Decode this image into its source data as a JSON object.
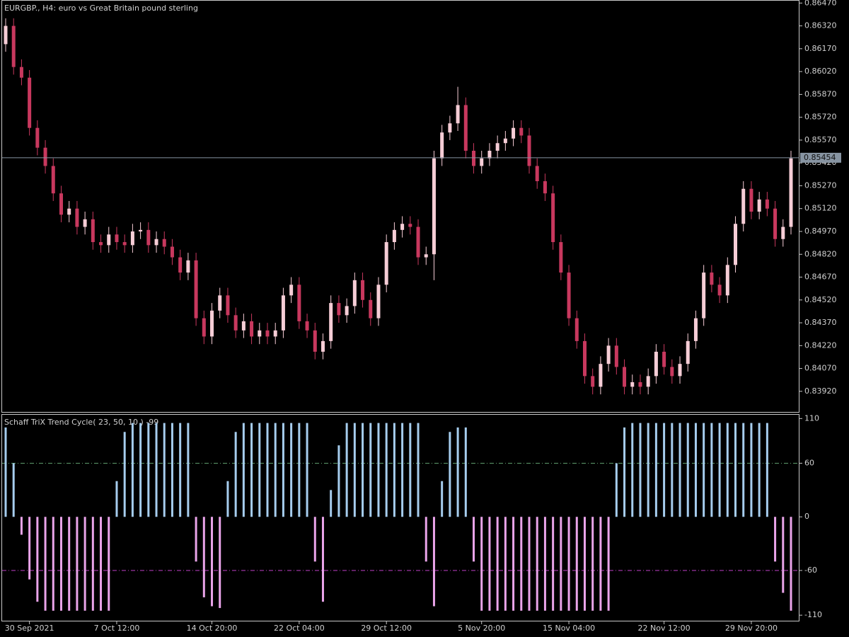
{
  "chart_data": [
    {
      "type": "candlestick",
      "title": "EURGBP., H4:  euro vs Great Britain pound sterling",
      "categories": [
        null,
        null,
        null,
        "30 Sep 2021",
        null,
        null,
        null,
        null,
        null,
        null,
        null,
        null,
        null,
        null,
        "7 Oct 12:00",
        null,
        null,
        null,
        null,
        null,
        null,
        null,
        null,
        null,
        null,
        null,
        "14 Oct 20:00",
        null,
        null,
        null,
        null,
        null,
        null,
        null,
        null,
        null,
        null,
        "22 Oct 04:00",
        null,
        null,
        null,
        null,
        null,
        null,
        null,
        null,
        null,
        null,
        "29 Oct 12:00",
        null,
        null,
        null,
        null,
        null,
        null,
        null,
        null,
        null,
        null,
        null,
        "5 Nov 20:00",
        null,
        null,
        null,
        null,
        null,
        null,
        null,
        null,
        null,
        null,
        "15 Nov 04:00",
        null,
        null,
        null,
        null,
        null,
        null,
        null,
        null,
        null,
        null,
        null,
        "22 Nov 12:00",
        null,
        null,
        null,
        null,
        null,
        null,
        null,
        null,
        null,
        null,
        "29 Nov 20:00",
        null,
        null,
        null,
        null,
        null
      ],
      "open": [
        0.862,
        0.8632,
        0.8605,
        0.8598,
        0.8565,
        0.8552,
        0.854,
        0.8522,
        0.8508,
        0.8512,
        0.85,
        0.8505,
        0.849,
        0.8488,
        0.8495,
        0.849,
        0.8488,
        0.8497,
        0.8498,
        0.8488,
        0.8492,
        0.8487,
        0.848,
        0.847,
        0.8478,
        0.844,
        0.8428,
        0.8445,
        0.8455,
        0.8442,
        0.8432,
        0.8438,
        0.8428,
        0.8432,
        0.8428,
        0.8432,
        0.8455,
        0.8462,
        0.8438,
        0.8432,
        0.8418,
        0.8425,
        0.845,
        0.8442,
        0.8448,
        0.8465,
        0.8452,
        0.844,
        0.8462,
        0.849,
        0.8498,
        0.8502,
        0.85,
        0.848,
        0.8482,
        0.8545,
        0.8562,
        0.8568,
        0.858,
        0.855,
        0.854,
        0.8545,
        0.855,
        0.8555,
        0.8558,
        0.8565,
        0.856,
        0.854,
        0.853,
        0.8522,
        0.849,
        0.847,
        0.844,
        0.8425,
        0.8402,
        0.8395,
        0.841,
        0.8422,
        0.8408,
        0.8395,
        0.8398,
        0.8395,
        0.8402,
        0.8418,
        0.8408,
        0.8402,
        0.841,
        0.8425,
        0.844,
        0.847,
        0.8462,
        0.8455,
        0.8475,
        0.8502,
        0.8525,
        0.851,
        0.8518,
        0.8512,
        0.8492,
        0.85
      ],
      "high": [
        0.8637,
        0.8637,
        0.861,
        0.8603,
        0.857,
        0.8557,
        0.8545,
        0.8527,
        0.8517,
        0.8517,
        0.851,
        0.851,
        0.8495,
        0.85,
        0.85,
        0.8495,
        0.8502,
        0.8503,
        0.8503,
        0.8497,
        0.8497,
        0.8492,
        0.8485,
        0.8483,
        0.8483,
        0.8445,
        0.845,
        0.846,
        0.846,
        0.8447,
        0.8443,
        0.8443,
        0.8437,
        0.8437,
        0.8437,
        0.846,
        0.8467,
        0.8467,
        0.8443,
        0.8437,
        0.843,
        0.8455,
        0.8455,
        0.8453,
        0.847,
        0.847,
        0.8457,
        0.8467,
        0.8495,
        0.8503,
        0.8507,
        0.8507,
        0.8505,
        0.8487,
        0.855,
        0.8567,
        0.8573,
        0.8592,
        0.8585,
        0.8555,
        0.855,
        0.8555,
        0.856,
        0.8563,
        0.857,
        0.857,
        0.8565,
        0.8545,
        0.8535,
        0.8527,
        0.8495,
        0.8475,
        0.8445,
        0.843,
        0.8407,
        0.8415,
        0.8427,
        0.8427,
        0.8413,
        0.8403,
        0.8403,
        0.8407,
        0.8423,
        0.8423,
        0.8413,
        0.8415,
        0.843,
        0.8445,
        0.8475,
        0.8475,
        0.8467,
        0.848,
        0.8507,
        0.853,
        0.853,
        0.8523,
        0.8523,
        0.8517,
        0.8505,
        0.855
      ],
      "low": [
        0.8615,
        0.86,
        0.8593,
        0.856,
        0.8547,
        0.8535,
        0.8517,
        0.8503,
        0.8503,
        0.8495,
        0.8495,
        0.8485,
        0.8483,
        0.8483,
        0.8485,
        0.8483,
        0.8483,
        0.8492,
        0.8483,
        0.8483,
        0.8482,
        0.8475,
        0.8465,
        0.8465,
        0.8435,
        0.8423,
        0.8423,
        0.844,
        0.8437,
        0.8427,
        0.8427,
        0.8423,
        0.8423,
        0.8423,
        0.8423,
        0.8427,
        0.845,
        0.8433,
        0.8427,
        0.8413,
        0.8413,
        0.842,
        0.8437,
        0.8437,
        0.8443,
        0.8447,
        0.8435,
        0.8435,
        0.8457,
        0.8485,
        0.8493,
        0.8495,
        0.8475,
        0.8475,
        0.8465,
        0.854,
        0.8557,
        0.8563,
        0.8545,
        0.8535,
        0.8535,
        0.854,
        0.8545,
        0.855,
        0.8553,
        0.8555,
        0.8535,
        0.8525,
        0.8517,
        0.8485,
        0.8465,
        0.8435,
        0.842,
        0.8397,
        0.839,
        0.839,
        0.8405,
        0.8403,
        0.839,
        0.839,
        0.839,
        0.839,
        0.8397,
        0.8403,
        0.8397,
        0.8397,
        0.8405,
        0.842,
        0.8435,
        0.8457,
        0.845,
        0.845,
        0.847,
        0.8497,
        0.8505,
        0.8505,
        0.8507,
        0.8487,
        0.8487,
        0.8495
      ],
      "close": [
        0.8632,
        0.8605,
        0.8598,
        0.8565,
        0.8552,
        0.854,
        0.8522,
        0.8508,
        0.8512,
        0.85,
        0.8505,
        0.849,
        0.8488,
        0.8495,
        0.849,
        0.8488,
        0.8497,
        0.8498,
        0.8488,
        0.8492,
        0.8487,
        0.848,
        0.847,
        0.8478,
        0.844,
        0.8428,
        0.8445,
        0.8455,
        0.8442,
        0.8432,
        0.8438,
        0.8428,
        0.8432,
        0.8428,
        0.8432,
        0.8455,
        0.8462,
        0.8438,
        0.8432,
        0.8418,
        0.8425,
        0.845,
        0.8442,
        0.8448,
        0.8465,
        0.8452,
        0.844,
        0.8462,
        0.849,
        0.8498,
        0.8502,
        0.85,
        0.848,
        0.8482,
        0.8545,
        0.8562,
        0.8568,
        0.858,
        0.855,
        0.854,
        0.8545,
        0.855,
        0.8555,
        0.8558,
        0.8565,
        0.856,
        0.854,
        0.853,
        0.8522,
        0.849,
        0.847,
        0.844,
        0.8425,
        0.8402,
        0.8395,
        0.841,
        0.8422,
        0.8408,
        0.8395,
        0.8398,
        0.8395,
        0.8402,
        0.8418,
        0.8408,
        0.8402,
        0.841,
        0.8425,
        0.844,
        0.847,
        0.8462,
        0.8455,
        0.8475,
        0.8502,
        0.8525,
        0.851,
        0.8518,
        0.8512,
        0.8492,
        0.85,
        0.8545
      ],
      "bull_color": "#f6cdd6",
      "bear_color": "#c8385e",
      "last_price": 0.85454,
      "last_price_color": "#8794a2",
      "ylim": [
        0.8378,
        0.8649
      ],
      "yticks": [
        {
          "value": 0.8647,
          "label": "0.86470"
        },
        {
          "value": 0.8632,
          "label": "0.86320"
        },
        {
          "value": 0.8617,
          "label": "0.86170"
        },
        {
          "value": 0.8602,
          "label": "0.86020"
        },
        {
          "value": 0.8587,
          "label": "0.85870"
        },
        {
          "value": 0.8572,
          "label": "0.85720"
        },
        {
          "value": 0.8557,
          "label": "0.85570"
        },
        {
          "value": 0.8542,
          "label": "0.85420"
        },
        {
          "value": 0.8527,
          "label": "0.85270"
        },
        {
          "value": 0.8512,
          "label": "0.85120"
        },
        {
          "value": 0.8497,
          "label": "0.84970"
        },
        {
          "value": 0.8482,
          "label": "0.84820"
        },
        {
          "value": 0.8467,
          "label": "0.84670"
        },
        {
          "value": 0.8452,
          "label": "0.84520"
        },
        {
          "value": 0.8437,
          "label": "0.84370"
        },
        {
          "value": 0.8422,
          "label": "0.84220"
        },
        {
          "value": 0.8407,
          "label": "0.84070"
        },
        {
          "value": 0.8392,
          "label": "0.83920"
        }
      ]
    },
    {
      "type": "bar",
      "title": "Schaff TriX Trend Cycle( 23, 50, 10 ) -99",
      "values": [
        100,
        60,
        -20,
        -70,
        -95,
        -105,
        -105,
        -105,
        -105,
        -105,
        -105,
        -105,
        -105,
        -105,
        40,
        95,
        105,
        105,
        105,
        105,
        105,
        105,
        105,
        105,
        -50,
        -90,
        -100,
        -102,
        40,
        95,
        105,
        105,
        105,
        105,
        105,
        105,
        105,
        105,
        105,
        -50,
        -95,
        30,
        80,
        105,
        105,
        105,
        105,
        105,
        105,
        105,
        105,
        105,
        105,
        -50,
        -100,
        40,
        95,
        100,
        100,
        -50,
        -105,
        -105,
        -105,
        -105,
        -105,
        -105,
        -105,
        -105,
        -105,
        -105,
        -105,
        -105,
        -105,
        -105,
        -105,
        -105,
        -105,
        60,
        100,
        105,
        105,
        105,
        105,
        105,
        105,
        105,
        105,
        105,
        105,
        105,
        105,
        105,
        105,
        105,
        105,
        105,
        105,
        -50,
        -85,
        -105
      ],
      "up_color": "#a6cdee",
      "down_color": "#eaa4ea",
      "levels": [
        {
          "value": 60,
          "color": "#5e9c6c"
        },
        {
          "value": -60,
          "color": "#c040c8"
        }
      ],
      "ylim": [
        -117,
        115
      ],
      "yticks": [
        110,
        60,
        0,
        -60,
        -110
      ]
    }
  ]
}
